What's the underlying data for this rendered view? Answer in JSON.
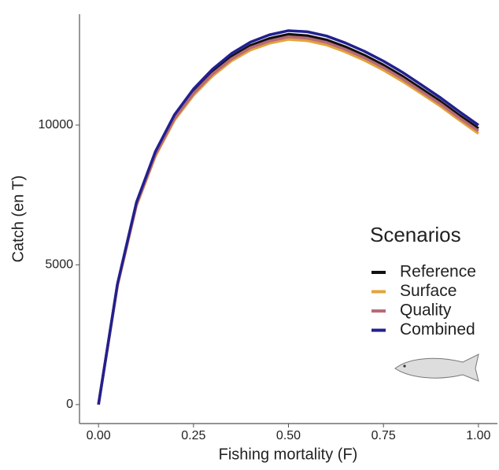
{
  "chart_data": {
    "type": "line",
    "x_label": "Fishing mortality (F)",
    "y_label": "Catch (en T)",
    "x": [
      0,
      0.05,
      0.1,
      0.15,
      0.2,
      0.25,
      0.3,
      0.35,
      0.4,
      0.45,
      0.5,
      0.55,
      0.6,
      0.65,
      0.7,
      0.75,
      0.8,
      0.85,
      0.9,
      0.95,
      1.0
    ],
    "series": [
      {
        "name": "Reference",
        "color": "#111111",
        "values": [
          0,
          4300,
          7200,
          9000,
          10300,
          11200,
          11900,
          12450,
          12850,
          13100,
          13250,
          13200,
          13050,
          12800,
          12500,
          12150,
          11750,
          11300,
          10850,
          10350,
          9880
        ]
      },
      {
        "name": "Surface",
        "color": "#e3a43a",
        "values": [
          0,
          4250,
          7120,
          8900,
          10180,
          11070,
          11760,
          12300,
          12690,
          12930,
          13070,
          13020,
          12870,
          12620,
          12320,
          11970,
          11570,
          11130,
          10680,
          10180,
          9700
        ]
      },
      {
        "name": "Quality",
        "color": "#b86a78",
        "values": [
          0,
          4280,
          7160,
          8950,
          10240,
          11130,
          11830,
          12370,
          12770,
          13010,
          13160,
          13110,
          12960,
          12710,
          12410,
          12060,
          11660,
          11210,
          10760,
          10260,
          9790
        ]
      },
      {
        "name": "Combined",
        "color": "#22208f",
        "values": [
          0,
          4320,
          7240,
          9060,
          10370,
          11290,
          12000,
          12560,
          12970,
          13230,
          13380,
          13340,
          13190,
          12940,
          12640,
          12290,
          11890,
          11440,
          10980,
          10480,
          10000
        ]
      }
    ],
    "legend_title": "Scenarios",
    "legend": "right",
    "grid": false,
    "xlim": [
      -0.05,
      1.05
    ],
    "xticks": [
      {
        "value": 0,
        "label": "0.00"
      },
      {
        "value": 0.25,
        "label": "0.25"
      },
      {
        "value": 0.5,
        "label": "0.50"
      },
      {
        "value": 0.75,
        "label": "0.75"
      },
      {
        "value": 1,
        "label": "1.00"
      }
    ],
    "ylim": [
      -680,
      13970
    ],
    "yticks": [
      0,
      5000,
      10000
    ]
  }
}
